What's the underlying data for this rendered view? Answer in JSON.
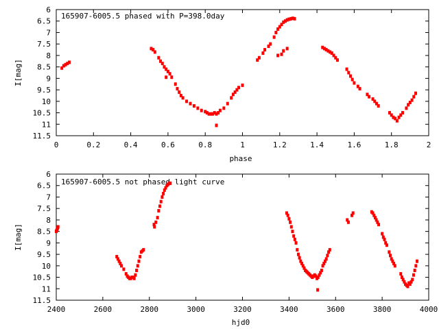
{
  "colors": {
    "points": "#ff0000",
    "axes": "#000000",
    "background": "#ffffff"
  },
  "chart_data": [
    {
      "type": "scatter",
      "title": "165907-6005.5 phased with P=398.0day",
      "xlabel": "phase",
      "ylabel": "I[mag]",
      "xlim": [
        0,
        2
      ],
      "ylim": [
        11.5,
        6
      ],
      "y_inverted": true,
      "x_ticks": [
        0,
        0.2,
        0.4,
        0.6,
        0.8,
        1,
        1.2,
        1.4,
        1.6,
        1.8,
        2
      ],
      "x_tick_labels": [
        "0",
        "0.2",
        "0.4",
        "0.6",
        "0.8",
        "1",
        "1.2",
        "1.4",
        "1.6",
        "1.8",
        "2"
      ],
      "y_ticks": [
        6,
        6.5,
        7,
        7.5,
        8,
        8.5,
        9,
        9.5,
        10,
        10.5,
        11,
        11.5
      ],
      "y_tick_labels": [
        "6",
        "6.5",
        "7",
        "7.5",
        "8",
        "8.5",
        "9",
        "9.5",
        "10",
        "10.5",
        "11",
        "11.5"
      ],
      "grid": false,
      "series": [
        {
          "x": [
            0.03,
            0.04,
            0.05,
            0.06,
            0.07,
            0.51,
            0.52,
            0.53,
            0.55,
            0.56,
            0.57,
            0.58,
            0.59,
            0.6,
            0.61,
            0.62,
            0.64,
            0.65,
            0.66,
            0.67,
            0.68,
            0.7,
            0.72,
            0.74,
            0.76,
            0.78,
            0.8,
            0.81,
            0.82,
            0.83,
            0.84,
            0.85,
            0.86,
            0.87,
            0.88,
            0.9,
            0.92,
            0.94,
            0.95,
            0.96,
            0.97,
            0.98,
            1.0,
            0.86,
            0.59,
            1.08,
            1.09,
            1.11,
            1.12,
            1.14,
            1.15,
            1.17,
            1.18,
            1.19,
            1.2,
            1.21,
            1.22,
            1.23,
            1.24,
            1.25,
            1.26,
            1.27,
            1.28,
            1.19,
            1.21,
            1.22,
            1.24,
            1.43,
            1.44,
            1.45,
            1.46,
            1.47,
            1.48,
            1.49,
            1.5,
            1.51,
            1.56,
            1.57,
            1.58,
            1.59,
            1.6,
            1.62,
            1.63,
            1.67,
            1.68,
            1.7,
            1.71,
            1.72,
            1.73,
            1.79,
            1.8,
            1.81,
            1.82,
            1.83,
            1.84,
            1.85,
            1.86,
            1.88,
            1.89,
            1.9,
            1.91,
            1.92,
            1.93
          ],
          "y": [
            8.55,
            8.45,
            8.4,
            8.35,
            8.3,
            7.7,
            7.75,
            7.85,
            8.1,
            8.25,
            8.35,
            8.5,
            8.6,
            8.7,
            8.8,
            8.95,
            9.25,
            9.45,
            9.6,
            9.75,
            9.85,
            10.0,
            10.1,
            10.2,
            10.3,
            10.4,
            10.45,
            10.5,
            10.55,
            10.55,
            10.55,
            10.5,
            10.55,
            10.5,
            10.4,
            10.3,
            10.1,
            9.85,
            9.7,
            9.6,
            9.5,
            9.4,
            9.3,
            11.05,
            8.95,
            8.2,
            8.1,
            7.9,
            7.75,
            7.6,
            7.5,
            7.2,
            7.0,
            6.85,
            6.75,
            6.65,
            6.55,
            6.5,
            6.45,
            6.42,
            6.4,
            6.38,
            6.4,
            8.0,
            7.95,
            7.8,
            7.7,
            7.65,
            7.7,
            7.75,
            7.8,
            7.85,
            7.9,
            8.0,
            8.1,
            8.2,
            8.6,
            8.75,
            8.9,
            9.05,
            9.2,
            9.35,
            9.45,
            9.7,
            9.8,
            9.9,
            10.0,
            10.1,
            10.2,
            10.5,
            10.6,
            10.7,
            10.75,
            10.85,
            10.7,
            10.6,
            10.5,
            10.3,
            10.15,
            10.05,
            9.95,
            9.8,
            9.65
          ]
        }
      ]
    },
    {
      "type": "scatter",
      "title": "165907-6005.5 not phased light curve",
      "xlabel": "hjd0",
      "ylabel": "I[mag]",
      "xlim": [
        2400,
        4000
      ],
      "ylim": [
        11.5,
        6
      ],
      "y_inverted": true,
      "x_ticks": [
        2400,
        2600,
        2800,
        3000,
        3200,
        3400,
        3600,
        3800,
        4000
      ],
      "x_tick_labels": [
        "2400",
        "2600",
        "2800",
        "3000",
        "3200",
        "3400",
        "3600",
        "3800",
        "4000"
      ],
      "y_ticks": [
        6,
        6.5,
        7,
        7.5,
        8,
        8.5,
        9,
        9.5,
        10,
        10.5,
        11,
        11.5
      ],
      "y_tick_labels": [
        "6",
        "6.5",
        "7",
        "7.5",
        "8",
        "8.5",
        "9",
        "9.5",
        "10",
        "10.5",
        "11",
        "11.5"
      ],
      "grid": false,
      "series": [
        {
          "x": [
            2400,
            2402,
            2404,
            2406,
            2408,
            2660,
            2665,
            2670,
            2675,
            2680,
            2690,
            2700,
            2705,
            2710,
            2715,
            2720,
            2725,
            2730,
            2735,
            2740,
            2745,
            2750,
            2755,
            2760,
            2765,
            2770,
            2775,
            2820,
            2822,
            2828,
            2835,
            2840,
            2845,
            2850,
            2855,
            2860,
            2865,
            2870,
            2875,
            2880,
            2885,
            2890,
            3390,
            3395,
            3400,
            3405,
            3410,
            3415,
            3420,
            3425,
            3430,
            3435,
            3440,
            3445,
            3450,
            3455,
            3460,
            3465,
            3470,
            3475,
            3480,
            3485,
            3490,
            3495,
            3500,
            3505,
            3510,
            3515,
            3520,
            3525,
            3530,
            3535,
            3540,
            3545,
            3550,
            3555,
            3560,
            3565,
            3570,
            3575,
            3523,
            3650,
            3655,
            3670,
            3675,
            3755,
            3760,
            3765,
            3770,
            3775,
            3780,
            3785,
            3800,
            3805,
            3810,
            3815,
            3820,
            3830,
            3835,
            3840,
            3845,
            3850,
            3855,
            3880,
            3885,
            3890,
            3895,
            3900,
            3905,
            3910,
            3915,
            3920,
            3925,
            3930,
            3935,
            3940,
            3945,
            3950
          ],
          "y": [
            8.5,
            8.45,
            8.4,
            8.35,
            8.3,
            9.6,
            9.7,
            9.8,
            9.9,
            10.0,
            10.15,
            10.35,
            10.45,
            10.5,
            10.55,
            10.55,
            10.5,
            10.5,
            10.55,
            10.4,
            10.2,
            10.0,
            9.8,
            9.6,
            9.4,
            9.35,
            9.3,
            8.2,
            8.3,
            8.1,
            7.9,
            7.6,
            7.4,
            7.2,
            7.0,
            6.85,
            6.7,
            6.6,
            6.5,
            6.45,
            6.4,
            6.4,
            7.7,
            7.8,
            7.95,
            8.1,
            8.3,
            8.5,
            8.7,
            8.85,
            9.0,
            9.3,
            9.5,
            9.65,
            9.8,
            9.9,
            10.0,
            10.1,
            10.2,
            10.25,
            10.3,
            10.35,
            10.4,
            10.45,
            10.5,
            10.45,
            10.4,
            10.45,
            10.55,
            10.5,
            10.4,
            10.3,
            10.2,
            10.0,
            9.9,
            9.8,
            9.7,
            9.55,
            9.4,
            9.3,
            11.05,
            8.0,
            8.1,
            7.8,
            7.7,
            7.65,
            7.7,
            7.8,
            7.9,
            8.0,
            8.1,
            8.2,
            8.6,
            8.75,
            8.85,
            9.0,
            9.1,
            9.4,
            9.55,
            9.7,
            9.8,
            9.9,
            10.0,
            10.35,
            10.5,
            10.6,
            10.7,
            10.8,
            10.85,
            10.9,
            10.75,
            10.8,
            10.7,
            10.6,
            10.4,
            10.2,
            10.0,
            9.8
          ]
        }
      ]
    }
  ]
}
